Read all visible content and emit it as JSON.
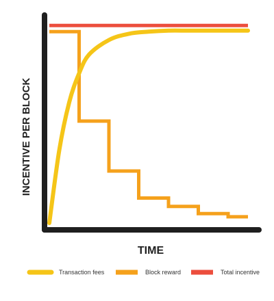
{
  "chart_data": {
    "type": "line",
    "title": "",
    "xlabel": "TIME",
    "ylabel": "INCENTIVE PER BLOCK",
    "xlim": [
      0,
      10
    ],
    "ylim": [
      0,
      10
    ],
    "grid": false,
    "legend_position": "bottom",
    "series": [
      {
        "name": "Transaction fees",
        "color": "#F5C518",
        "shape": "curve",
        "x": [
          0,
          0.5,
          1,
          1.5,
          2,
          3,
          4,
          5,
          6,
          7,
          8,
          9,
          10
        ],
        "y": [
          0,
          3.5,
          5.8,
          7.2,
          8.1,
          8.8,
          9.1,
          9.2,
          9.25,
          9.25,
          9.25,
          9.25,
          9.25
        ]
      },
      {
        "name": "Block reward",
        "color": "#F5A11C",
        "shape": "step",
        "x": [
          0,
          1.5,
          3,
          4.5,
          6,
          7.5,
          9,
          10
        ],
        "y": [
          9.2,
          4.9,
          2.5,
          1.2,
          0.8,
          0.45,
          0.3,
          0.3
        ]
      },
      {
        "name": "Total incentive",
        "color": "#EC4E3D",
        "shape": "line",
        "x": [
          0,
          10
        ],
        "y": [
          9.5,
          9.5
        ]
      }
    ]
  }
}
